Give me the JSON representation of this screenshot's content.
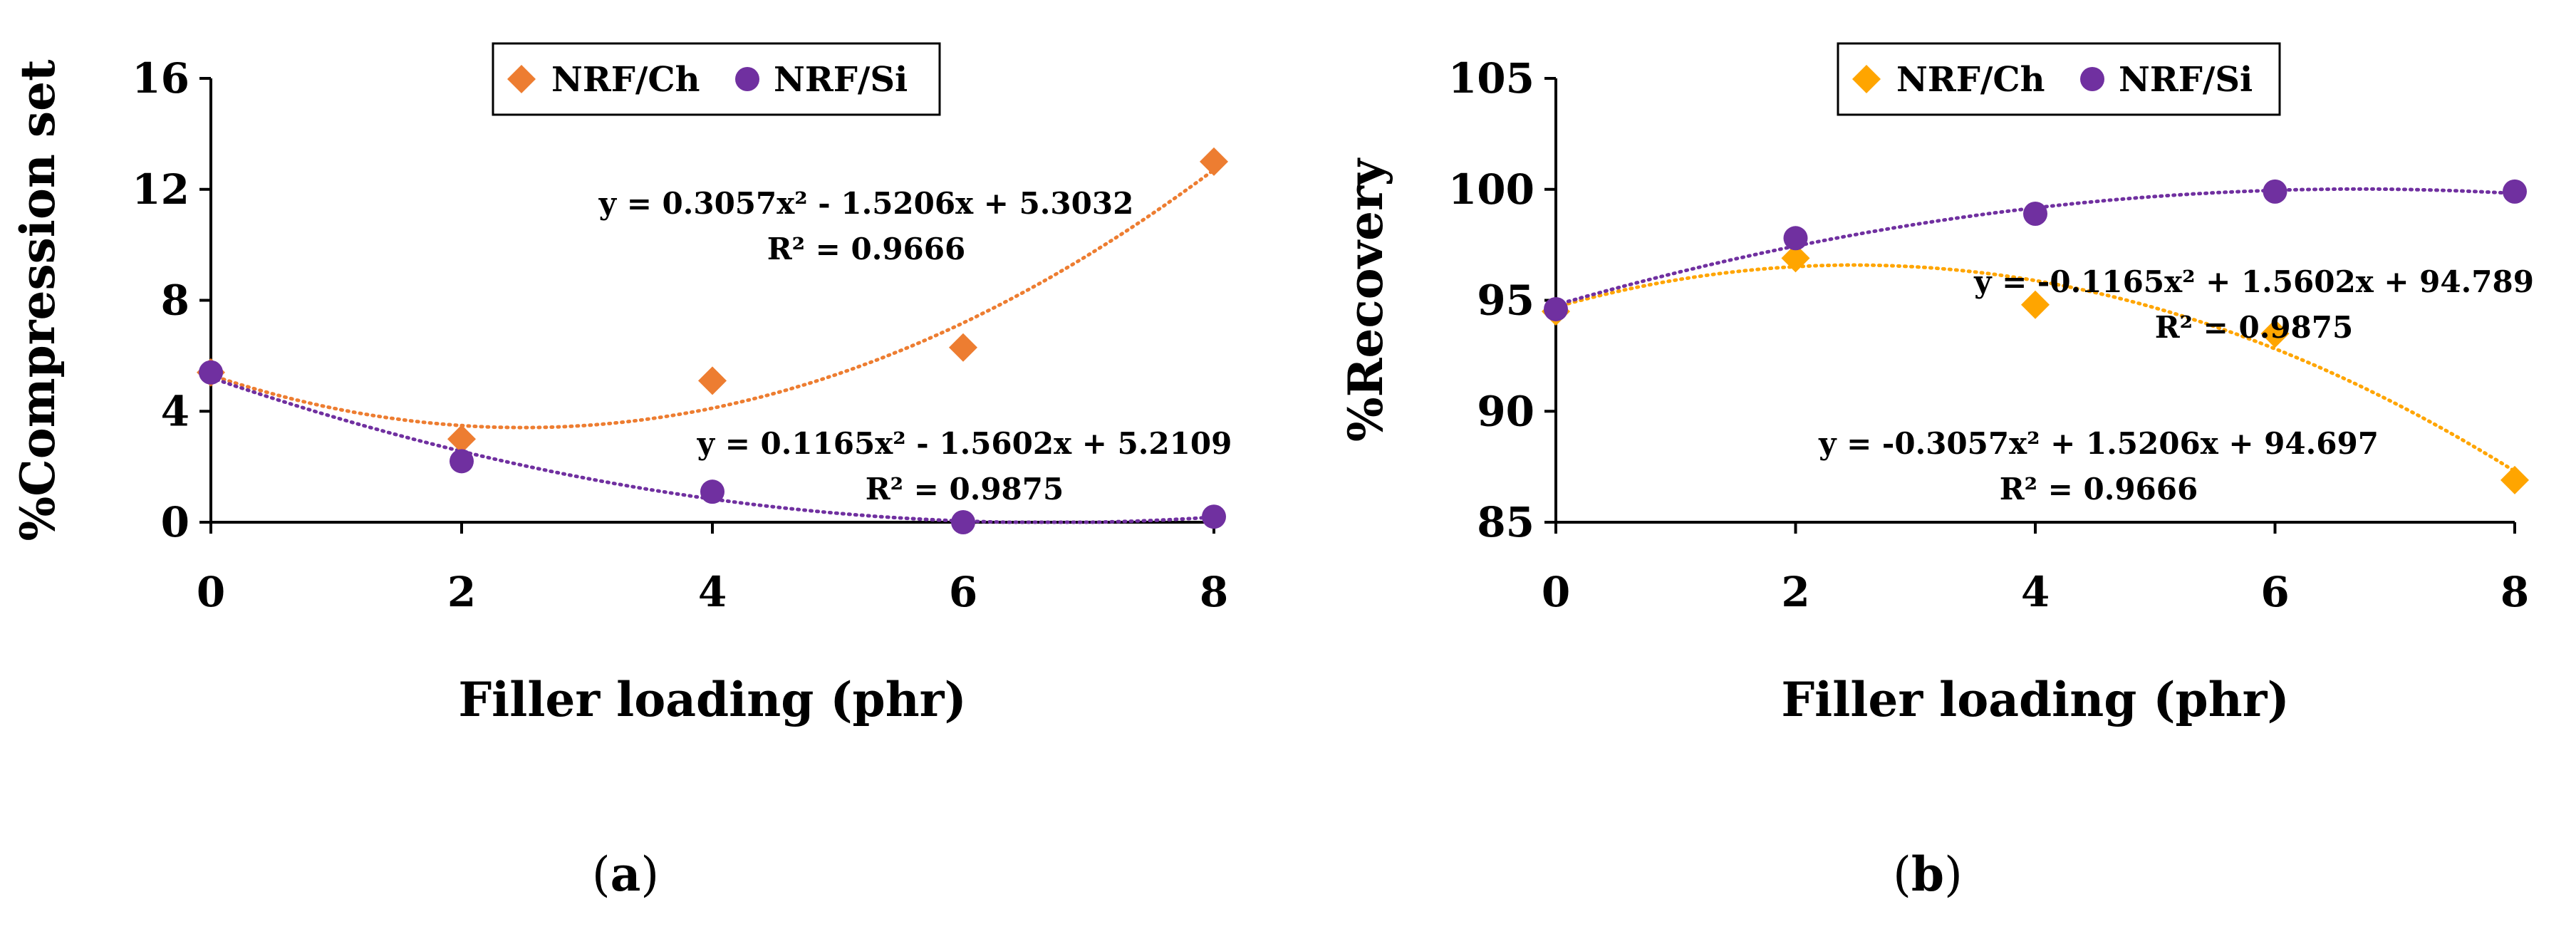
{
  "chart_data": [
    {
      "type": "scatter",
      "panel_label": "a",
      "caption_open": "(",
      "caption_close": ")",
      "xlabel": "Filler loading (phr)",
      "ylabel": "%Compression set",
      "xlim": [
        0,
        8
      ],
      "ylim": [
        0,
        16
      ],
      "x_ticks": [
        "0",
        "2",
        "4",
        "6",
        "8"
      ],
      "y_ticks": [
        "0",
        "4",
        "8",
        "12",
        "16"
      ],
      "legend_position": "top-center",
      "series": [
        {
          "name": "NRF/Ch",
          "marker": "diamond",
          "color": "#ED7D31",
          "x": [
            0,
            2,
            4,
            6,
            8
          ],
          "y": [
            5.4,
            3.0,
            5.1,
            6.3,
            13.0
          ],
          "trendline": {
            "type": "poly2",
            "coefficients": [
              0.3057,
              -1.5206,
              5.3032
            ],
            "equation": "y = 0.3057x² - 1.5206x + 5.3032",
            "r2": "R² = 0.9666"
          }
        },
        {
          "name": "NRF/Si",
          "marker": "circle",
          "color": "#7030A0",
          "x": [
            0,
            2,
            4,
            6,
            8
          ],
          "y": [
            5.4,
            2.2,
            1.1,
            0.0,
            0.2
          ],
          "trendline": {
            "type": "poly2",
            "coefficients": [
              0.1165,
              -1.5602,
              5.2109
            ],
            "equation": "y = 0.1165x² - 1.5602x + 5.2109",
            "r2": "R² = 0.9875"
          }
        }
      ]
    },
    {
      "type": "scatter",
      "panel_label": "b",
      "caption_open": "(",
      "caption_close": ")",
      "xlabel": "Filler loading (phr)",
      "ylabel": "%Recovery",
      "xlim": [
        0,
        8
      ],
      "ylim": [
        85,
        105
      ],
      "x_ticks": [
        "0",
        "2",
        "4",
        "6",
        "8"
      ],
      "y_ticks": [
        "85",
        "90",
        "95",
        "100",
        "105"
      ],
      "legend_position": "top-center",
      "series": [
        {
          "name": "NRF/Ch",
          "marker": "diamond",
          "color": "#FFA500",
          "x": [
            0,
            2,
            4,
            6,
            8
          ],
          "y": [
            94.5,
            96.9,
            94.8,
            93.5,
            86.9
          ],
          "trendline": {
            "type": "poly2",
            "coefficients": [
              -0.3057,
              1.5206,
              94.697
            ],
            "equation": "y = -0.3057x² + 1.5206x + 94.697",
            "r2": "R² = 0.9666"
          }
        },
        {
          "name": "NRF/Si",
          "marker": "circle",
          "color": "#7030A0",
          "x": [
            0,
            2,
            4,
            6,
            8
          ],
          "y": [
            94.6,
            97.8,
            98.9,
            99.9,
            99.9
          ],
          "trendline": {
            "type": "poly2",
            "coefficients": [
              -0.1165,
              1.5602,
              94.789
            ],
            "equation": "y = -0.1165x² + 1.5602x + 94.789",
            "r2": "R² = 0.9875"
          }
        }
      ]
    }
  ]
}
